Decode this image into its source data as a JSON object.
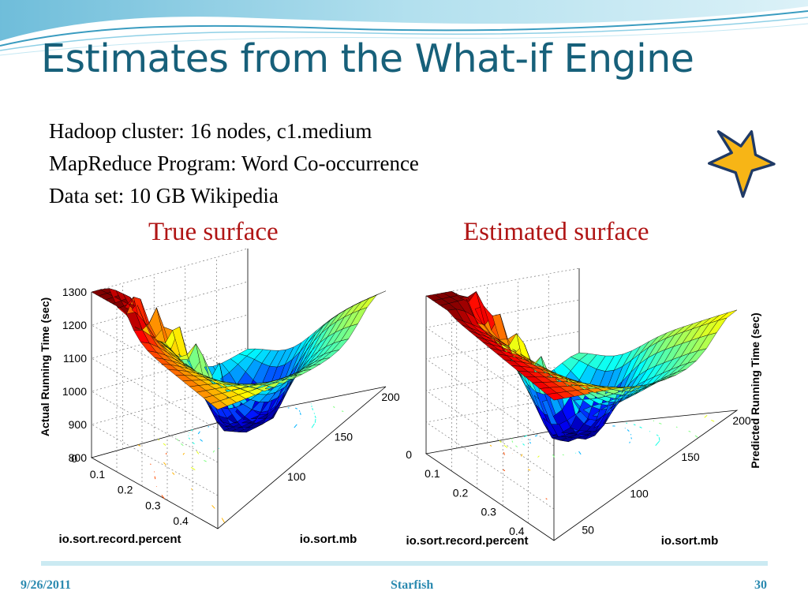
{
  "slide": {
    "title": "Estimates from the What-if Engine",
    "info_lines": [
      "Hadoop cluster: 16 nodes, c1.medium",
      "MapReduce Program: Word Co-occurrence",
      "Data set: 10 GB Wikipedia"
    ],
    "star_icon": "star-icon",
    "footer": {
      "date": "9/26/2011",
      "center": "Starfish",
      "page": "30"
    }
  },
  "colors": {
    "title": "#17607a",
    "surface_heading": "#b01515",
    "footer_text": "#2b8ab0",
    "star_fill": "#f7b516",
    "star_stroke": "#1f3a66"
  },
  "chart_data": [
    {
      "type": "surface",
      "heading": "True surface",
      "xlabel": "io.sort.record.percent",
      "ylabel": "io.sort.mb",
      "zlabel": "Actual Running Time (sec)",
      "x_ticks": [
        "0",
        "0.1",
        "0.2",
        "0.3",
        "0.4"
      ],
      "y_ticks": [
        "200",
        "150",
        "100"
      ],
      "z_ticks": [
        "800",
        "900",
        "1000",
        "1100",
        "1200",
        "1300"
      ],
      "xlim": [
        0,
        0.5
      ],
      "ylim": [
        50,
        200
      ],
      "zlim": [
        800,
        1300
      ],
      "colormap": "jet",
      "contour_projection": true,
      "grid": true,
      "z_min_approx": 780,
      "z_max_approx": 1300
    },
    {
      "type": "surface",
      "heading": "Estimated surface",
      "xlabel": "io.sort.record.percent",
      "ylabel": "io.sort.mb",
      "zlabel": "Predicted Running Time (sec)",
      "x_ticks": [
        "0",
        "0.1",
        "0.2",
        "0.3",
        "0.4"
      ],
      "y_ticks": [
        "200",
        "150",
        "100",
        "50"
      ],
      "z_ticks": [],
      "xlim": [
        0,
        0.5
      ],
      "ylim": [
        50,
        200
      ],
      "colormap": "jet",
      "contour_projection": true,
      "grid": true
    }
  ]
}
